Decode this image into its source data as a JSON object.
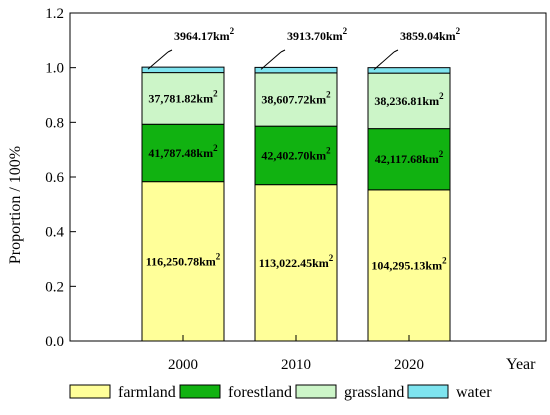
{
  "chart_data": {
    "type": "bar",
    "stacked": true,
    "categories": [
      "2000",
      "2010",
      "2020"
    ],
    "series": [
      {
        "name": "farmland",
        "color": "#ffff99",
        "values": [
          0.583,
          0.572,
          0.553
        ]
      },
      {
        "name": "forestland",
        "color": "#11b211",
        "values": [
          0.21,
          0.214,
          0.224
        ]
      },
      {
        "name": "grassland",
        "color": "#ccf5c8",
        "values": [
          0.189,
          0.195,
          0.203
        ]
      },
      {
        "name": "water",
        "color": "#7ee4ef",
        "values": [
          0.02,
          0.02,
          0.02
        ]
      }
    ],
    "segment_labels": [
      [
        "116,250.78km",
        "41,787.48km",
        "37,781.82km",
        "3964.17km"
      ],
      [
        "113,022.45km",
        "42,402.70km",
        "38,607.72km",
        "3913.70km"
      ],
      [
        "104,295.13km",
        "42,117.68km",
        "38,236.81km",
        "3859.04km"
      ]
    ],
    "label_superscript": "2",
    "xlabel": "Year",
    "ylabel": "Proportion / 100%",
    "ylim": [
      0,
      1.2
    ],
    "yticks": [
      "0.0",
      "0.2",
      "0.4",
      "0.6",
      "0.8",
      "1.0",
      "1.2"
    ],
    "grid": false,
    "legend_position": "bottom"
  }
}
